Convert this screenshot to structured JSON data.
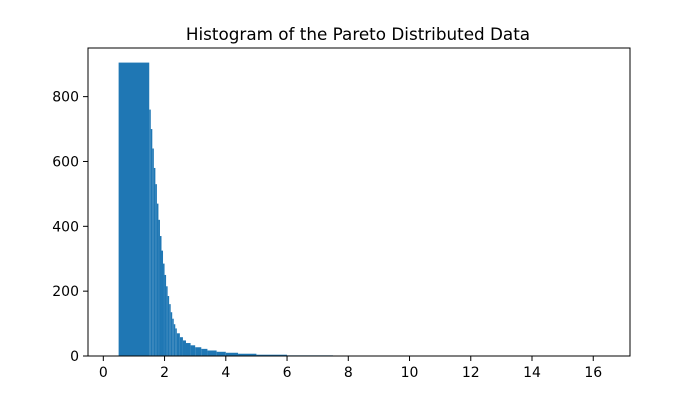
{
  "chart_data": {
    "type": "bar",
    "title": "Histogram of the Pareto Distributed Data",
    "xlabel": "",
    "ylabel": "",
    "xlim": [
      -0.5,
      17.2
    ],
    "ylim": [
      0,
      950
    ],
    "xticks": [
      0,
      2,
      4,
      6,
      8,
      10,
      12,
      14,
      16
    ],
    "yticks": [
      0,
      200,
      400,
      600,
      800
    ],
    "grid": false,
    "color": "#1f77b4",
    "bins": [
      {
        "x0": 0.5,
        "x1": 1.5,
        "count": 905
      },
      {
        "x0": 1.5,
        "x1": 1.55,
        "count": 760
      },
      {
        "x0": 1.55,
        "x1": 1.6,
        "count": 700
      },
      {
        "x0": 1.6,
        "x1": 1.65,
        "count": 640
      },
      {
        "x0": 1.65,
        "x1": 1.7,
        "count": 580
      },
      {
        "x0": 1.7,
        "x1": 1.75,
        "count": 530
      },
      {
        "x0": 1.75,
        "x1": 1.8,
        "count": 470
      },
      {
        "x0": 1.8,
        "x1": 1.85,
        "count": 420
      },
      {
        "x0": 1.85,
        "x1": 1.9,
        "count": 370
      },
      {
        "x0": 1.9,
        "x1": 1.95,
        "count": 325
      },
      {
        "x0": 1.95,
        "x1": 2.0,
        "count": 285
      },
      {
        "x0": 2.0,
        "x1": 2.05,
        "count": 250
      },
      {
        "x0": 2.05,
        "x1": 2.1,
        "count": 215
      },
      {
        "x0": 2.1,
        "x1": 2.15,
        "count": 185
      },
      {
        "x0": 2.15,
        "x1": 2.2,
        "count": 160
      },
      {
        "x0": 2.2,
        "x1": 2.25,
        "count": 135
      },
      {
        "x0": 2.25,
        "x1": 2.3,
        "count": 115
      },
      {
        "x0": 2.3,
        "x1": 2.35,
        "count": 98
      },
      {
        "x0": 2.35,
        "x1": 2.4,
        "count": 85
      },
      {
        "x0": 2.4,
        "x1": 2.5,
        "count": 70
      },
      {
        "x0": 2.5,
        "x1": 2.6,
        "count": 58
      },
      {
        "x0": 2.6,
        "x1": 2.7,
        "count": 48
      },
      {
        "x0": 2.7,
        "x1": 2.85,
        "count": 40
      },
      {
        "x0": 2.85,
        "x1": 3.0,
        "count": 33
      },
      {
        "x0": 3.0,
        "x1": 3.2,
        "count": 27
      },
      {
        "x0": 3.2,
        "x1": 3.4,
        "count": 22
      },
      {
        "x0": 3.4,
        "x1": 3.7,
        "count": 17
      },
      {
        "x0": 3.7,
        "x1": 4.0,
        "count": 13
      },
      {
        "x0": 4.0,
        "x1": 4.4,
        "count": 10
      },
      {
        "x0": 4.4,
        "x1": 5.0,
        "count": 7
      },
      {
        "x0": 5.0,
        "x1": 6.0,
        "count": 4
      },
      {
        "x0": 6.0,
        "x1": 7.5,
        "count": 2
      },
      {
        "x0": 7.5,
        "x1": 10.0,
        "count": 1
      },
      {
        "x0": 10.0,
        "x1": 16.6,
        "count": 0.5
      }
    ]
  }
}
